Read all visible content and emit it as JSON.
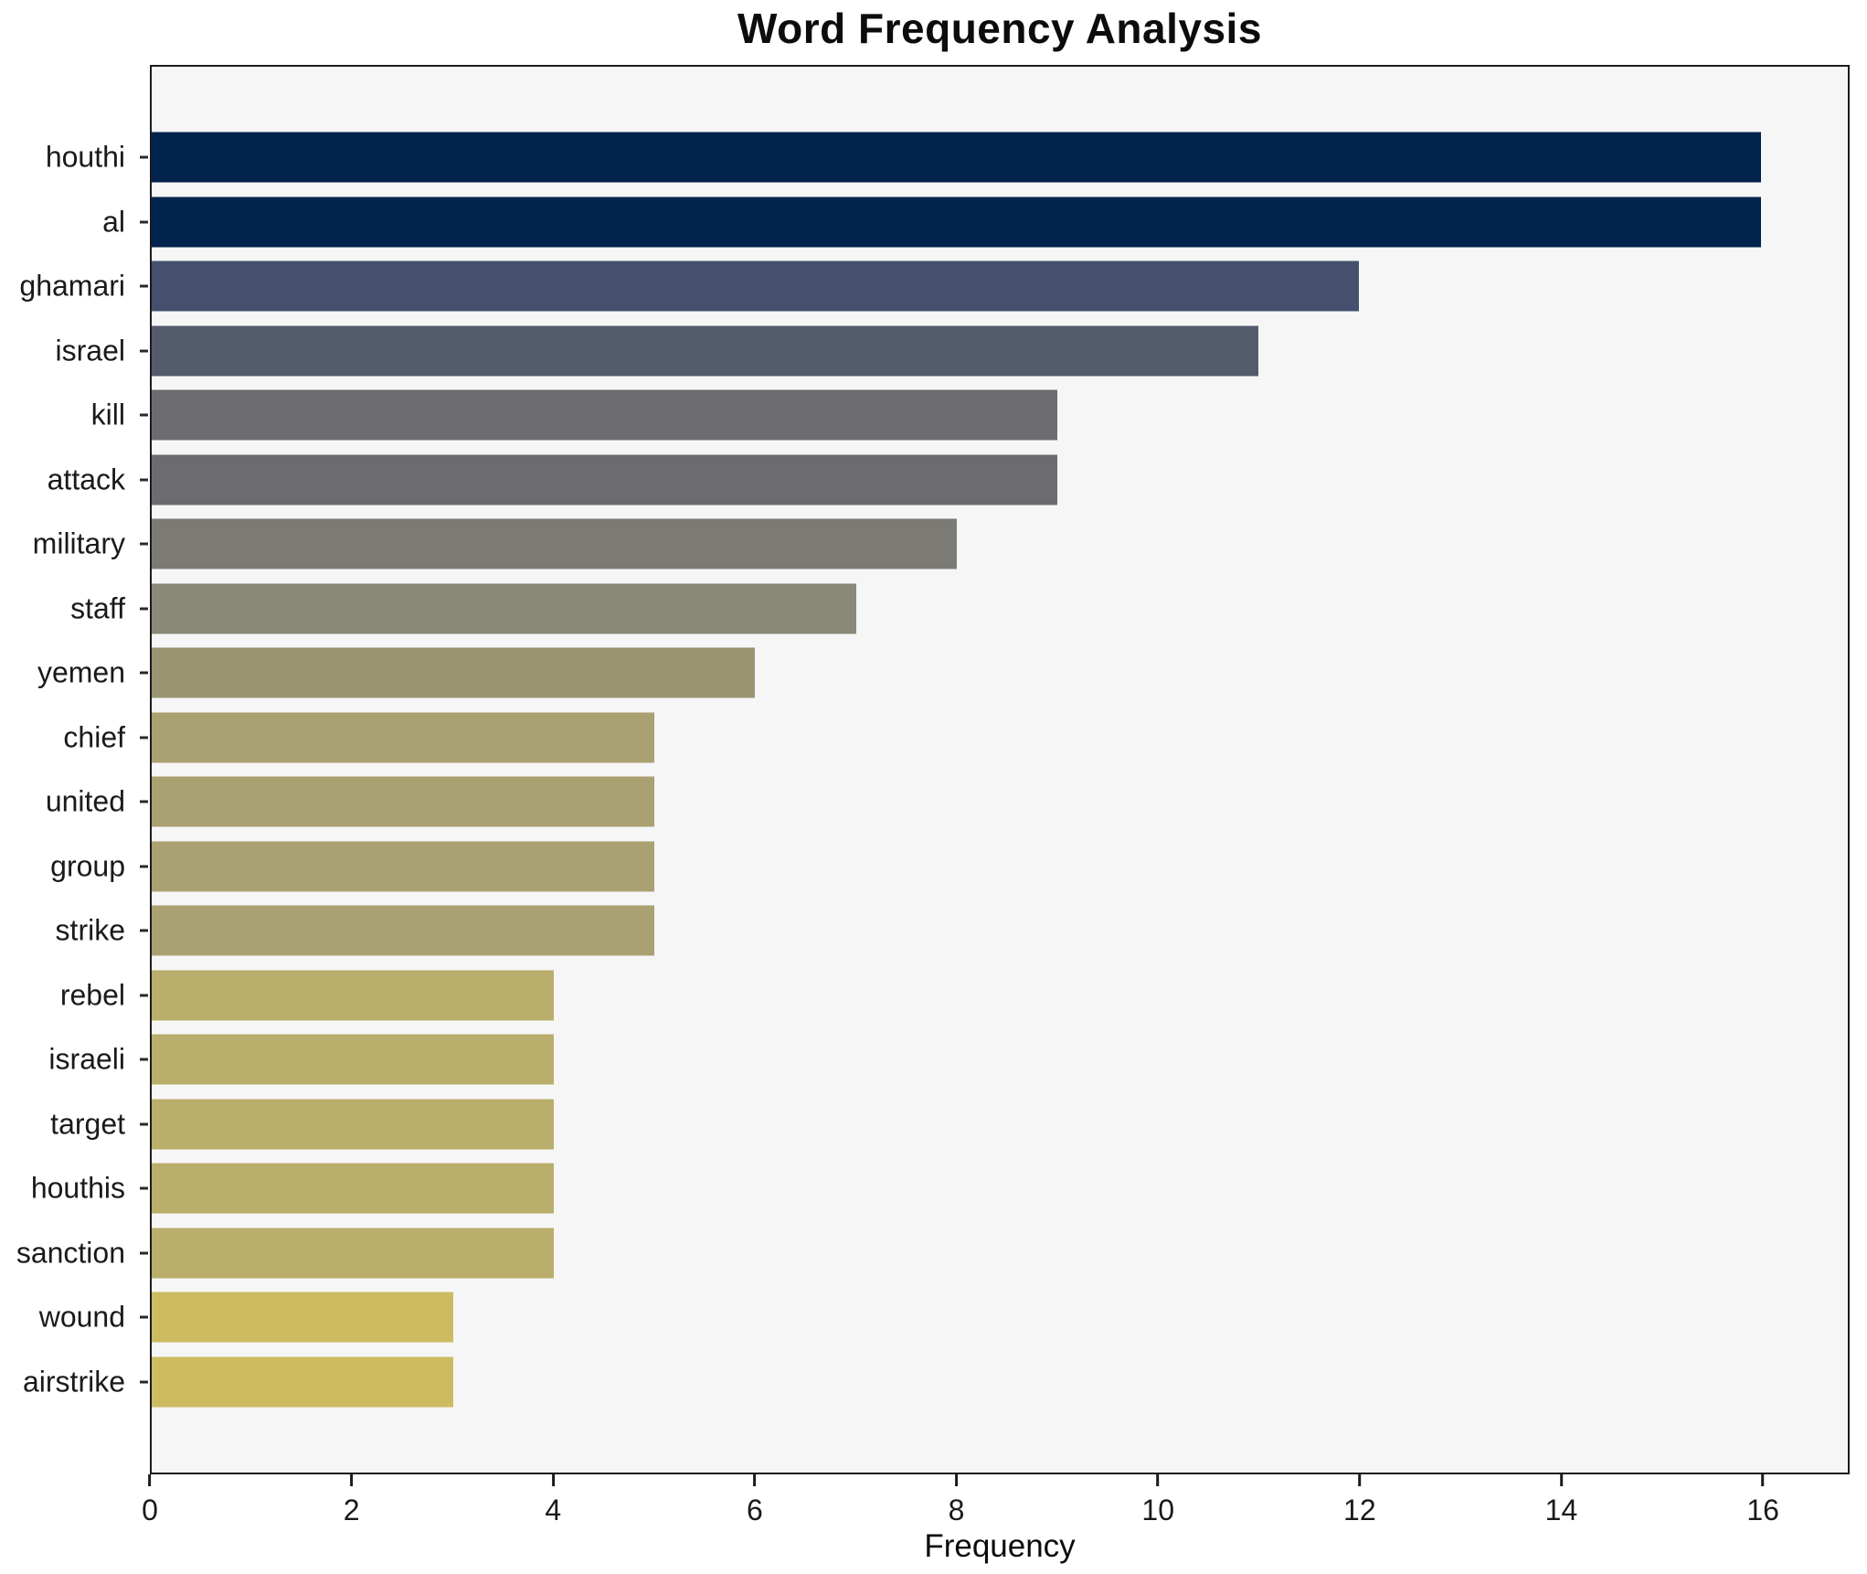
{
  "chart_data": {
    "type": "bar",
    "orientation": "horizontal",
    "title": "Word Frequency Analysis",
    "xlabel": "Frequency",
    "ylabel": "",
    "categories": [
      "houthi",
      "al",
      "ghamari",
      "israel",
      "kill",
      "attack",
      "military",
      "staff",
      "yemen",
      "chief",
      "united",
      "group",
      "strike",
      "rebel",
      "israeli",
      "target",
      "houthis",
      "sanction",
      "wound",
      "airstrike"
    ],
    "values": [
      16,
      16,
      12,
      11,
      9,
      9,
      8,
      7,
      6,
      5,
      5,
      5,
      5,
      4,
      4,
      4,
      4,
      4,
      3,
      3
    ],
    "bar_colors": [
      "#02234e",
      "#02234e",
      "#44506e",
      "#535b6c",
      "#6c6c70",
      "#6c6c70",
      "#7b7a74",
      "#8a8877",
      "#9a9472",
      "#aaa172",
      "#aaa172",
      "#aaa172",
      "#aaa172",
      "#b9ae6b",
      "#b9ae6b",
      "#b9ae6b",
      "#b9ae6b",
      "#b9ae6b",
      "#ccbb61",
      "#ccbb61"
    ],
    "xlim": [
      0,
      16.86
    ],
    "xticks": [
      0,
      2,
      4,
      6,
      8,
      10,
      12,
      14,
      16
    ],
    "grid": false,
    "legend_position": "none",
    "plot_background": "#f6f6f7",
    "figure_background": "#ffffff",
    "colormap": "cividis"
  }
}
